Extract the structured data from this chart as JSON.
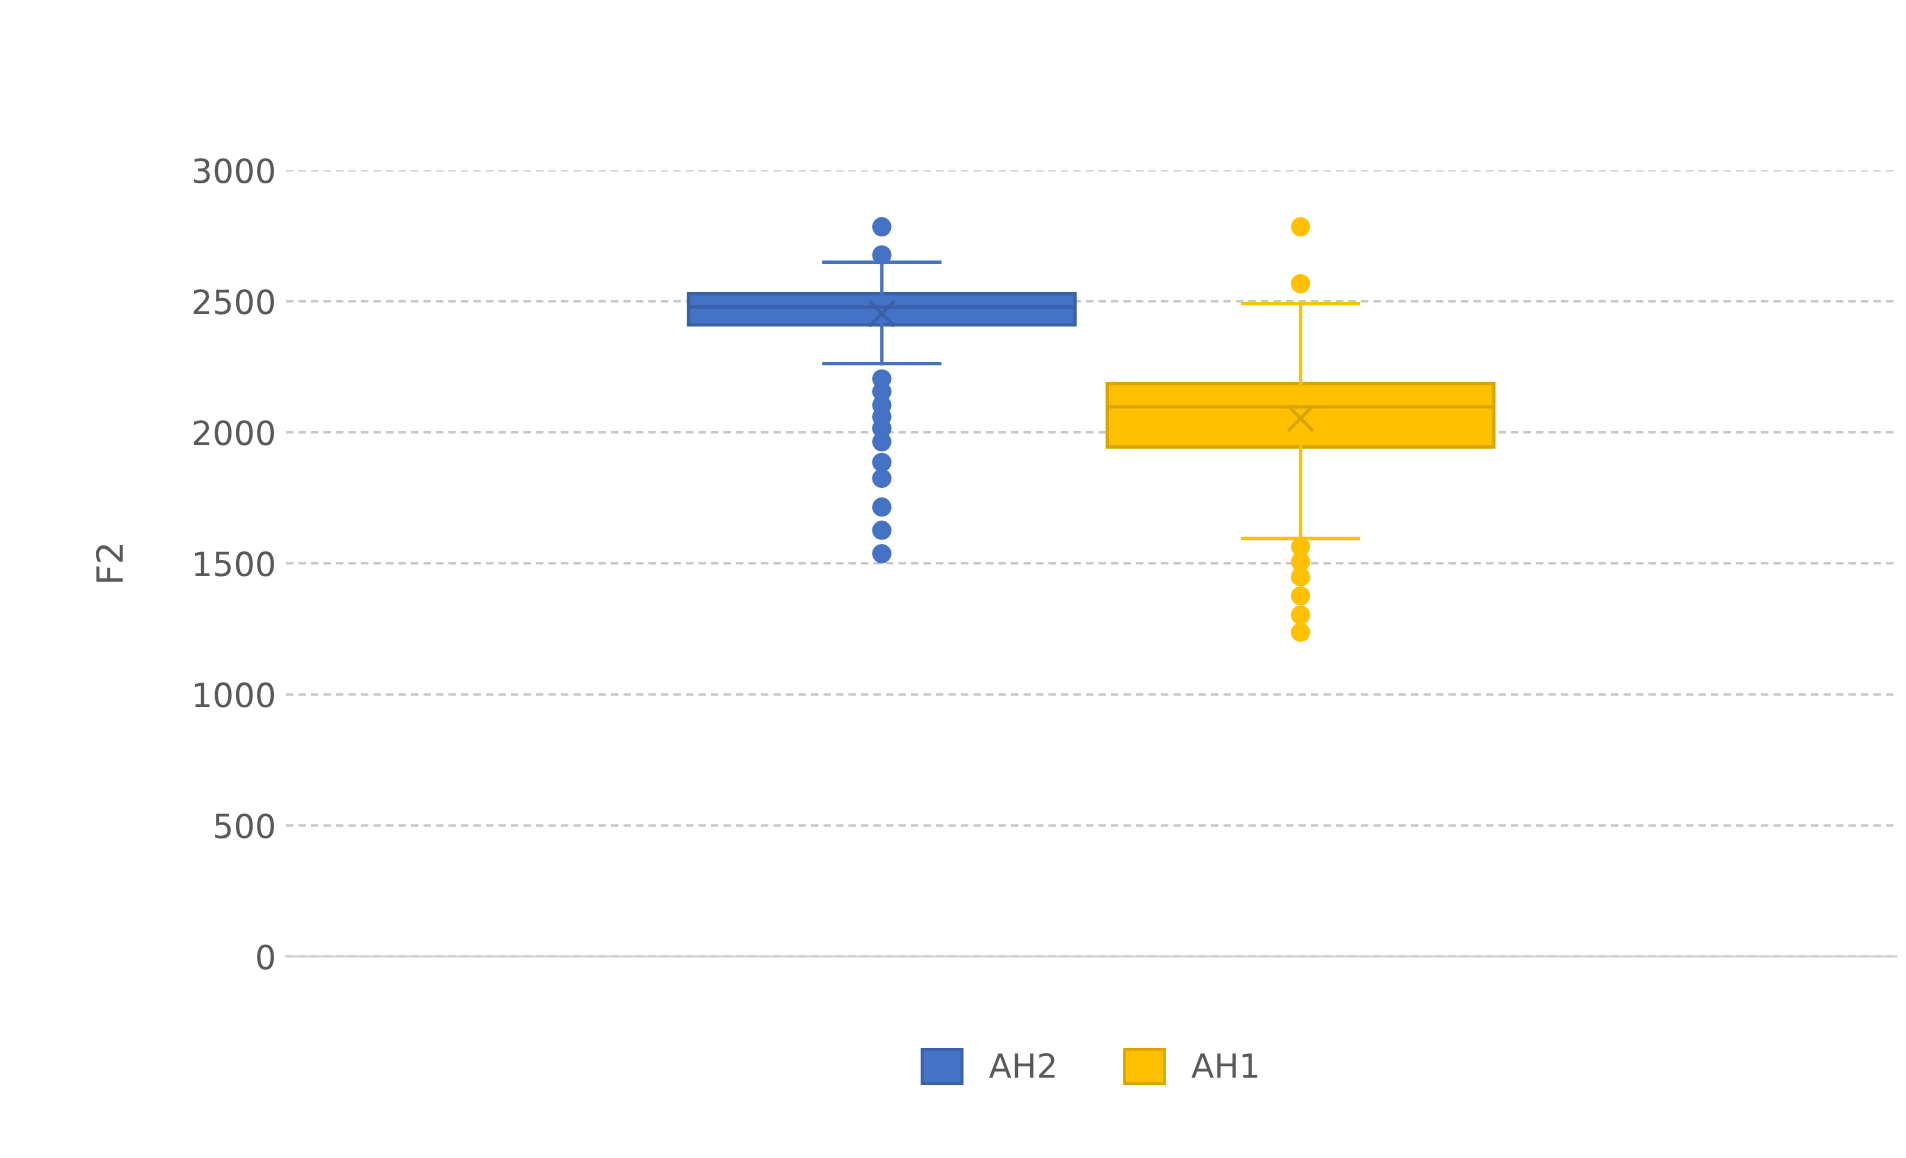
{
  "chart_data": {
    "type": "box",
    "ylabel": "F2",
    "categories": [
      null
    ],
    "series": [
      {
        "name": "AH2",
        "color": "#4472c4",
        "boxes": [
          {
            "low": 2262,
            "q1": 2410,
            "median": 2478,
            "q3": 2529,
            "high": 2649,
            "mean": 2453,
            "outliers": [
              2784,
              2677,
              2204,
              2155,
              2104,
              2059,
              2015,
              1964,
              1885,
              1824,
              1715,
              1626,
              1537
            ]
          }
        ]
      },
      {
        "name": "AH1",
        "color": "#ffc000",
        "boxes": [
          {
            "low": 1595,
            "q1": 1944,
            "median": 2097,
            "q3": 2186,
            "high": 2491,
            "mean": 2053,
            "outliers": [
              2784,
              2567,
              1563,
              1506,
              1448,
              1376,
              1303,
              1237
            ]
          }
        ]
      }
    ],
    "ylim": [
      0,
      3000
    ],
    "yticks": [
      0,
      500,
      1000,
      1500,
      2000,
      2500,
      3000
    ],
    "grid": "y",
    "legend": "bottom"
  }
}
